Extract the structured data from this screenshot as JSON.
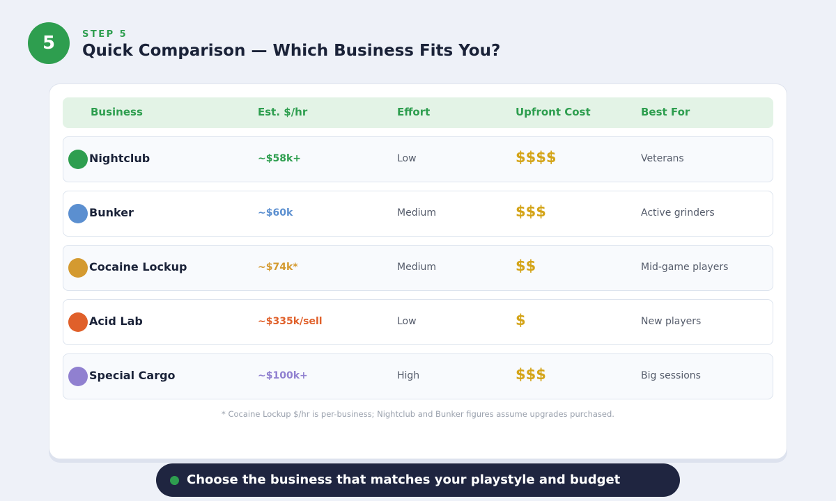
{
  "header": {
    "number": "5",
    "step": "STEP 5",
    "title": "Quick Comparison — Which Business Fits You?"
  },
  "table": {
    "columns": [
      "Business",
      "Est. $/hr",
      "Effort",
      "Upfront Cost",
      "Best For"
    ],
    "rows": [
      [
        "Nightclub",
        "~$58k+",
        "Low",
        "$$$$",
        "Veterans"
      ],
      [
        "Bunker",
        "~$60k",
        "Medium",
        "$$$",
        "Active grinders"
      ],
      [
        "Cocaine Lockup",
        "~$74k*",
        "Medium",
        "$$",
        "Mid-game players"
      ],
      [
        "Acid Lab",
        "~$335k/sell",
        "Low",
        "$",
        "New players"
      ],
      [
        "Special Cargo",
        "~$100k+",
        "High",
        "$$$",
        "Big sessions"
      ]
    ]
  },
  "footnote": "* Cocaine Lockup $/hr is per-business; Nightclub and Bunker figures assume upgrades purchased.",
  "banner": "Choose the business that matches your playstyle and budget"
}
